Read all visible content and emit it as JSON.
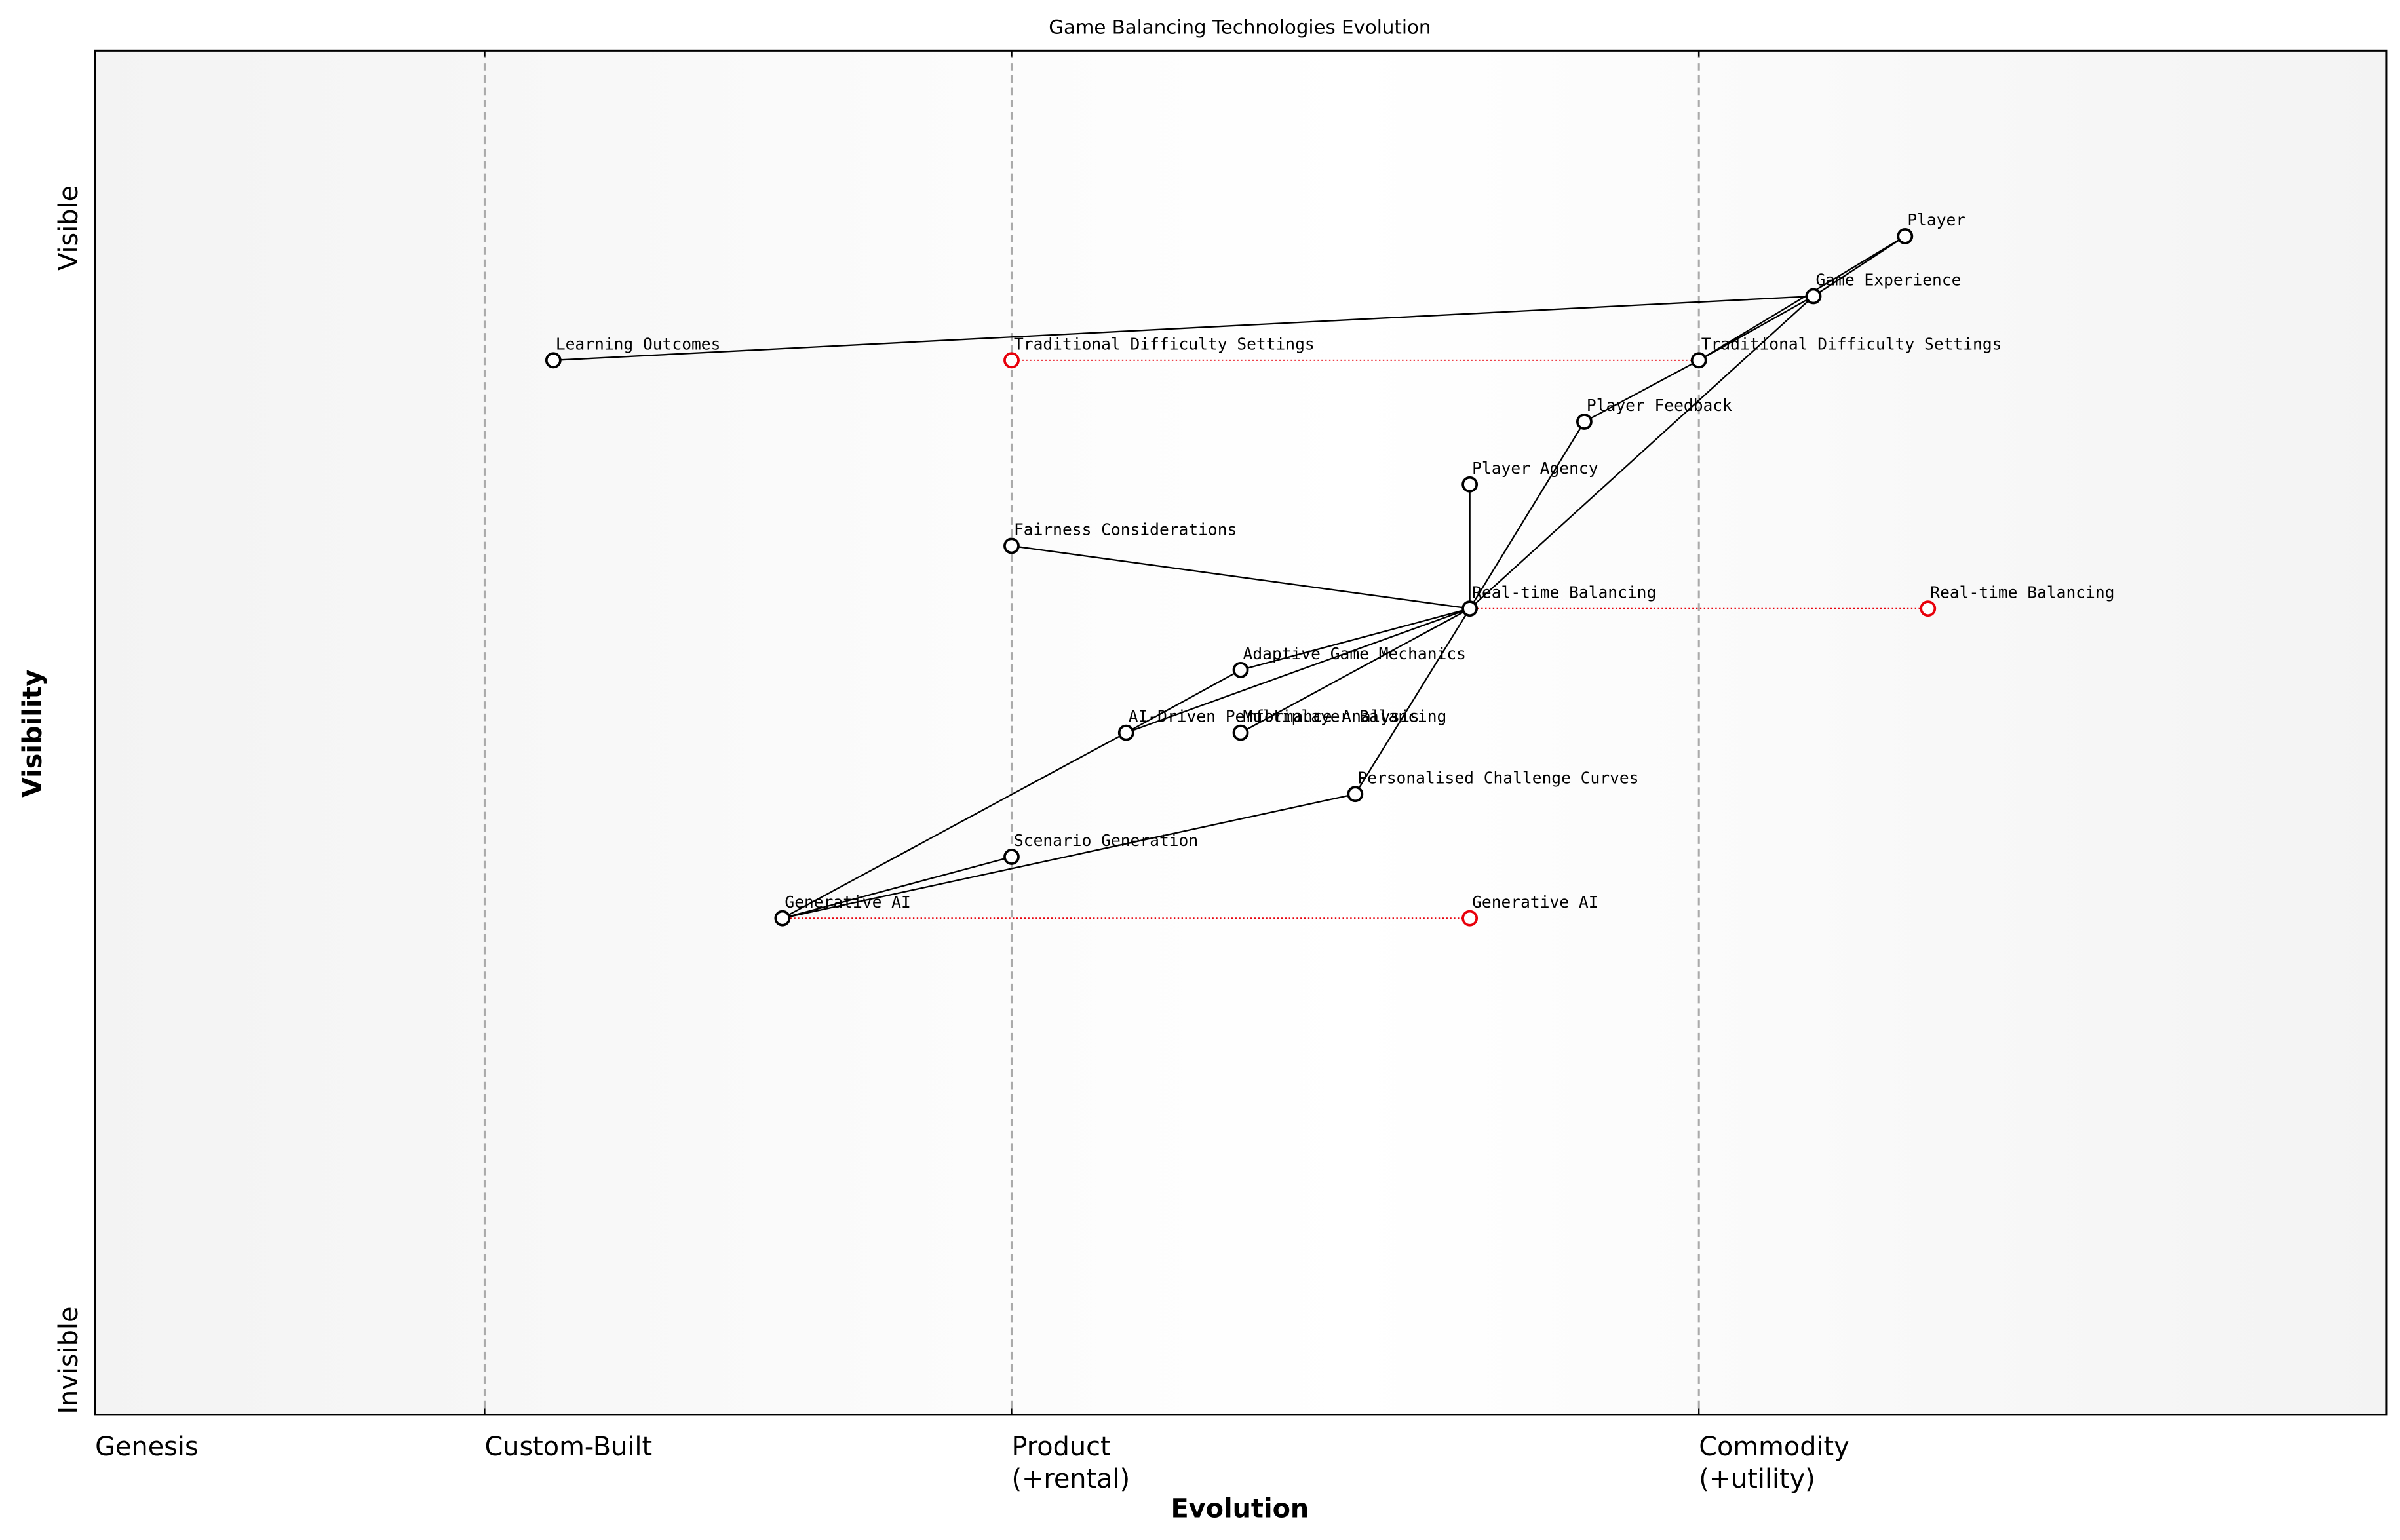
{
  "chart_data": {
    "type": "wardley",
    "title": "Game Balancing Technologies Evolution",
    "xlabel": "Evolution",
    "ylabel": "Visibility",
    "xlim": [
      0,
      1
    ],
    "ylim": [
      0,
      1
    ],
    "xticks": [
      {
        "value": 0,
        "label": [
          "Genesis"
        ]
      },
      {
        "value": 0.17,
        "label": [
          "Custom-Built"
        ]
      },
      {
        "value": 0.4,
        "label": [
          "Product",
          "(+rental)"
        ]
      },
      {
        "value": 0.7,
        "label": [
          "Commodity",
          "(+utility)"
        ]
      }
    ],
    "yticks": [
      {
        "value": 0.04,
        "label": "Invisible"
      },
      {
        "value": 0.87,
        "label": "Visible"
      }
    ],
    "nodes": [
      {
        "name": "Player",
        "evolution": 0.79,
        "visibility": 0.864
      },
      {
        "name": "Game Experience",
        "evolution": 0.75,
        "visibility": 0.82
      },
      {
        "name": "Traditional Difficulty Settings",
        "evolution": 0.7,
        "visibility": 0.773
      },
      {
        "name": "Learning Outcomes",
        "evolution": 0.2,
        "visibility": 0.773
      },
      {
        "name": "Player Feedback",
        "evolution": 0.65,
        "visibility": 0.728
      },
      {
        "name": "Player Agency",
        "evolution": 0.6,
        "visibility": 0.682
      },
      {
        "name": "Fairness Considerations",
        "evolution": 0.4,
        "visibility": 0.637
      },
      {
        "name": "Real-time Balancing",
        "evolution": 0.6,
        "visibility": 0.591
      },
      {
        "name": "Adaptive Game Mechanics",
        "evolution": 0.5,
        "visibility": 0.546
      },
      {
        "name": "AI-Driven Performance Analysis",
        "evolution": 0.45,
        "visibility": 0.5
      },
      {
        "name": "Multiplayer Balancing",
        "evolution": 0.5,
        "visibility": 0.5
      },
      {
        "name": "Personalised Challenge Curves",
        "evolution": 0.55,
        "visibility": 0.455
      },
      {
        "name": "Scenario Generation",
        "evolution": 0.4,
        "visibility": 0.409
      },
      {
        "name": "Generative AI",
        "evolution": 0.3,
        "visibility": 0.364
      }
    ],
    "links": [
      {
        "from": "Player",
        "to": "Game Experience"
      },
      {
        "from": "Player",
        "to": "Traditional Difficulty Settings"
      },
      {
        "from": "Game Experience",
        "to": "Learning Outcomes"
      },
      {
        "from": "Game Experience",
        "to": "Traditional Difficulty Settings"
      },
      {
        "from": "Game Experience",
        "to": "Real-time Balancing"
      },
      {
        "from": "Traditional Difficulty Settings",
        "to": "Player Feedback"
      },
      {
        "from": "Player Feedback",
        "to": "Real-time Balancing"
      },
      {
        "from": "Player Agency",
        "to": "Real-time Balancing"
      },
      {
        "from": "Fairness Considerations",
        "to": "Real-time Balancing"
      },
      {
        "from": "Real-time Balancing",
        "to": "Adaptive Game Mechanics"
      },
      {
        "from": "Real-time Balancing",
        "to": "AI-Driven Performance Analysis"
      },
      {
        "from": "Real-time Balancing",
        "to": "Multiplayer Balancing"
      },
      {
        "from": "Real-time Balancing",
        "to": "Personalised Challenge Curves"
      },
      {
        "from": "Adaptive Game Mechanics",
        "to": "AI-Driven Performance Analysis"
      },
      {
        "from": "AI-Driven Performance Analysis",
        "to": "Generative AI"
      },
      {
        "from": "Scenario Generation",
        "to": "Generative AI"
      },
      {
        "from": "Personalised Challenge Curves",
        "to": "Generative AI"
      }
    ],
    "evolved": [
      {
        "name": "Traditional Difficulty Settings",
        "evolution": 0.4,
        "visibility": 0.773
      },
      {
        "name": "Real-time Balancing",
        "evolution": 0.8,
        "visibility": 0.591
      },
      {
        "name": "Generative AI",
        "evolution": 0.6,
        "visibility": 0.364
      }
    ],
    "node_color": "#000000",
    "evolved_color": "#e8000b"
  }
}
